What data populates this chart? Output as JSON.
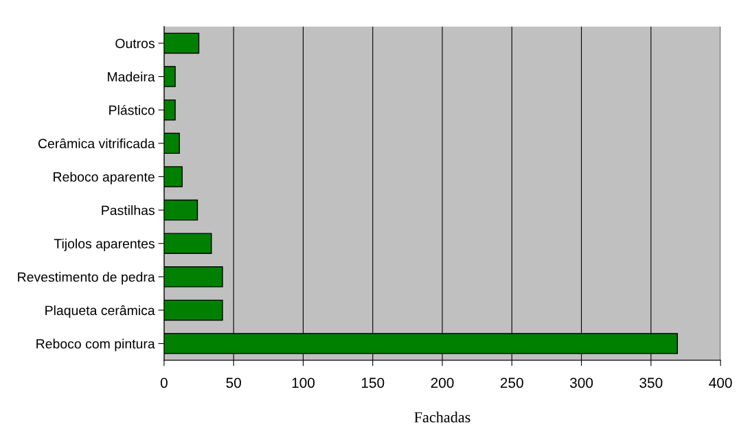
{
  "chart_data": {
    "type": "bar",
    "orientation": "horizontal",
    "xlabel": "Fachadas",
    "categories": [
      "Outros",
      "Madeira",
      "Plástico",
      "Cerâmica vitrificada",
      "Reboco aparente",
      "Pastilhas",
      "Tijolos aparentes",
      "Revestimento de pedra",
      "Plaqueta cerâmica",
      "Reboco com pintura"
    ],
    "values": [
      25,
      8,
      8,
      11,
      13,
      24,
      34,
      42,
      42,
      369
    ],
    "color": "#008000",
    "xlim": [
      0,
      400
    ],
    "xticks": [
      0,
      50,
      100,
      150,
      200,
      250,
      300,
      350,
      400
    ],
    "grid": "x",
    "legend": false
  }
}
